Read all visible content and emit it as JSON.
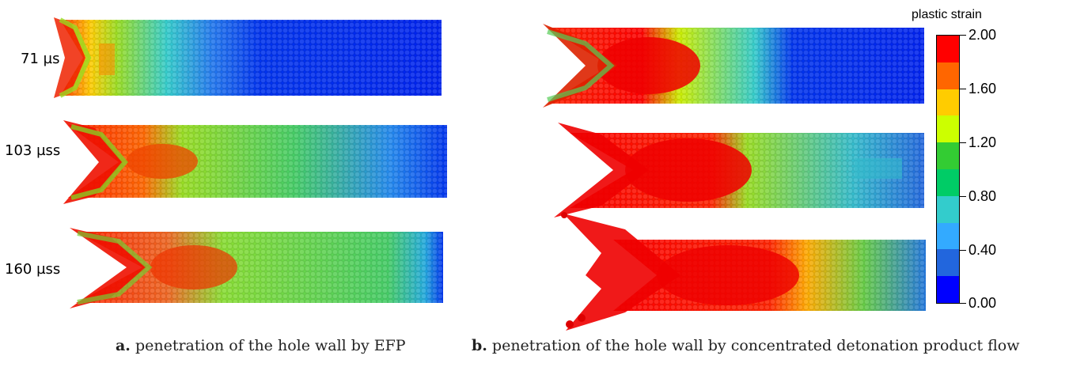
{
  "panels": [
    {
      "id": "a",
      "time_labels": [
        "71 µs",
        "103 µss",
        "160 µss"
      ],
      "caption_letter": "a.",
      "caption_text": "penetration of the hole wall by EFP"
    },
    {
      "id": "b",
      "caption_letter": "b.",
      "caption_text": "penetration of the hole wall by concentrated detonation product flow"
    }
  ],
  "legend": {
    "title": "plastic strain",
    "ticks": [
      "2.00",
      "1.60",
      "1.20",
      "0.80",
      "0.40",
      "0.00"
    ],
    "colors": [
      "#ff0000",
      "#ff6600",
      "#ffcc00",
      "#ccff00",
      "#33cc33",
      "#00cc66",
      "#33cccc",
      "#33aaff",
      "#2266dd",
      "#0000ff"
    ]
  }
}
